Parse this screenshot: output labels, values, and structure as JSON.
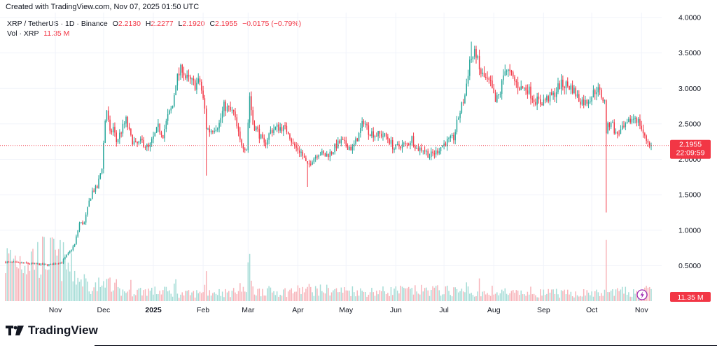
{
  "header": {
    "title": "Created with TradingView.com, Nov 07, 2025 01:50 UTC"
  },
  "legend": {
    "symbol": "XRP / TetherUS · 1D · Binance",
    "open_label": "O",
    "open": "2.2130",
    "high_label": "H",
    "high": "2.2277",
    "low_label": "L",
    "low": "2.1920",
    "close_label": "C",
    "close": "2.1955",
    "change": "−0.0175 (−0.79%)",
    "vol_label": "Vol · XRP",
    "vol_value": "11.35 M"
  },
  "price_badge": {
    "price": "2.1955",
    "countdown": "22:09:59"
  },
  "vol_badge": {
    "value": "11.35 M"
  },
  "logo": {
    "text": "TradingView",
    "icon": "tradingview-logo-icon"
  },
  "colors": {
    "up": "#26a69a",
    "down": "#f23645",
    "vol_up": "#a5dcd6",
    "vol_down": "#f7b3b9",
    "grid": "#f0f3fa",
    "text": "#131722"
  },
  "chart_data": {
    "type": "candlestick",
    "title": "XRP / TetherUS · 1D · Binance",
    "y_ticks": [
      "4.0000",
      "3.5000",
      "3.0000",
      "2.5000",
      "2.0000",
      "1.5000",
      "1.0000",
      "0.5000"
    ],
    "y_tick_values": [
      4.0,
      3.5,
      3.0,
      2.5,
      2.0,
      1.5,
      1.0,
      0.5
    ],
    "ylim": [
      0.0,
      4.03
    ],
    "x_ticks": [
      "Nov",
      "Dec",
      "2025",
      "Feb",
      "Mar",
      "Apr",
      "May",
      "Jun",
      "Jul",
      "Aug",
      "Sep",
      "Oct",
      "Nov"
    ],
    "x_tick_dates": [
      "2024-11-01",
      "2024-12-01",
      "2025-01-01",
      "2025-02-01",
      "2025-03-01",
      "2025-04-01",
      "2025-05-01",
      "2025-06-01",
      "2025-07-01",
      "2025-08-01",
      "2025-09-01",
      "2025-10-01",
      "2025-11-01"
    ],
    "bold_ticks": [
      "2025"
    ],
    "x_range": [
      "2024-10-01",
      "2025-11-07"
    ],
    "last_price": 2.1955,
    "close_series": [
      [
        "2024-10-01",
        0.55
      ],
      [
        "2024-10-15",
        0.53
      ],
      [
        "2024-10-28",
        0.51
      ],
      [
        "2024-11-05",
        0.55
      ],
      [
        "2024-11-10",
        0.7
      ],
      [
        "2024-11-13",
        0.8
      ],
      [
        "2024-11-16",
        1.1
      ],
      [
        "2024-11-19",
        1.1
      ],
      [
        "2024-11-22",
        1.4
      ],
      [
        "2024-11-24",
        1.55
      ],
      [
        "2024-11-27",
        1.6
      ],
      [
        "2024-11-30",
        1.9
      ],
      [
        "2024-12-02",
        2.55
      ],
      [
        "2024-12-03",
        2.7
      ],
      [
        "2024-12-05",
        2.35
      ],
      [
        "2024-12-07",
        2.45
      ],
      [
        "2024-12-09",
        2.25
      ],
      [
        "2024-12-12",
        2.4
      ],
      [
        "2024-12-15",
        2.55
      ],
      [
        "2024-12-18",
        2.3
      ],
      [
        "2024-12-21",
        2.2
      ],
      [
        "2024-12-25",
        2.25
      ],
      [
        "2024-12-29",
        2.15
      ],
      [
        "2025-01-01",
        2.3
      ],
      [
        "2025-01-04",
        2.45
      ],
      [
        "2025-01-07",
        2.35
      ],
      [
        "2025-01-10",
        2.6
      ],
      [
        "2025-01-13",
        2.75
      ],
      [
        "2025-01-15",
        3.1
      ],
      [
        "2025-01-17",
        3.2
      ],
      [
        "2025-01-19",
        3.3
      ],
      [
        "2025-01-21",
        3.15
      ],
      [
        "2025-01-24",
        3.1
      ],
      [
        "2025-01-27",
        3.05
      ],
      [
        "2025-01-30",
        3.1
      ],
      [
        "2025-02-02",
        2.7
      ],
      [
        "2025-02-03",
        2.45
      ],
      [
        "2025-02-05",
        2.4
      ],
      [
        "2025-02-08",
        2.45
      ],
      [
        "2025-02-11",
        2.5
      ],
      [
        "2025-02-14",
        2.75
      ],
      [
        "2025-02-17",
        2.7
      ],
      [
        "2025-02-20",
        2.65
      ],
      [
        "2025-02-24",
        2.25
      ],
      [
        "2025-02-28",
        2.15
      ],
      [
        "2025-03-02",
        2.9
      ],
      [
        "2025-03-04",
        2.5
      ],
      [
        "2025-03-07",
        2.4
      ],
      [
        "2025-03-11",
        2.2
      ],
      [
        "2025-03-15",
        2.4
      ],
      [
        "2025-03-19",
        2.45
      ],
      [
        "2025-03-22",
        2.45
      ],
      [
        "2025-03-26",
        2.4
      ],
      [
        "2025-03-29",
        2.2
      ],
      [
        "2025-04-03",
        2.1
      ],
      [
        "2025-04-07",
        1.9
      ],
      [
        "2025-04-10",
        2.0
      ],
      [
        "2025-04-14",
        2.1
      ],
      [
        "2025-04-18",
        2.05
      ],
      [
        "2025-04-22",
        2.1
      ],
      [
        "2025-04-25",
        2.2
      ],
      [
        "2025-04-28",
        2.25
      ],
      [
        "2025-05-01",
        2.2
      ],
      [
        "2025-05-05",
        2.15
      ],
      [
        "2025-05-09",
        2.35
      ],
      [
        "2025-05-12",
        2.55
      ],
      [
        "2025-05-15",
        2.4
      ],
      [
        "2025-05-19",
        2.35
      ],
      [
        "2025-05-23",
        2.35
      ],
      [
        "2025-05-27",
        2.3
      ],
      [
        "2025-05-31",
        2.15
      ],
      [
        "2025-06-04",
        2.2
      ],
      [
        "2025-06-08",
        2.2
      ],
      [
        "2025-06-11",
        2.3
      ],
      [
        "2025-06-14",
        2.15
      ],
      [
        "2025-06-18",
        2.15
      ],
      [
        "2025-06-22",
        2.05
      ],
      [
        "2025-06-26",
        2.1
      ],
      [
        "2025-06-30",
        2.2
      ],
      [
        "2025-07-03",
        2.25
      ],
      [
        "2025-07-07",
        2.3
      ],
      [
        "2025-07-10",
        2.6
      ],
      [
        "2025-07-12",
        2.75
      ],
      [
        "2025-07-14",
        2.9
      ],
      [
        "2025-07-17",
        3.4
      ],
      [
        "2025-07-19",
        3.45
      ],
      [
        "2025-07-21",
        3.5
      ],
      [
        "2025-07-23",
        3.25
      ],
      [
        "2025-07-26",
        3.15
      ],
      [
        "2025-07-30",
        3.05
      ],
      [
        "2025-08-02",
        2.8
      ],
      [
        "2025-08-05",
        2.95
      ],
      [
        "2025-08-08",
        3.3
      ],
      [
        "2025-08-11",
        3.2
      ],
      [
        "2025-08-14",
        3.1
      ],
      [
        "2025-08-18",
        3.0
      ],
      [
        "2025-08-22",
        3.0
      ],
      [
        "2025-08-26",
        2.85
      ],
      [
        "2025-08-30",
        2.8
      ],
      [
        "2025-09-03",
        2.85
      ],
      [
        "2025-09-07",
        2.9
      ],
      [
        "2025-09-11",
        3.05
      ],
      [
        "2025-09-15",
        3.05
      ],
      [
        "2025-09-19",
        3.0
      ],
      [
        "2025-09-23",
        2.85
      ],
      [
        "2025-09-27",
        2.8
      ],
      [
        "2025-10-01",
        2.9
      ],
      [
        "2025-10-04",
        3.0
      ],
      [
        "2025-10-07",
        2.9
      ],
      [
        "2025-10-09",
        2.8
      ],
      [
        "2025-10-10",
        2.4
      ],
      [
        "2025-10-13",
        2.55
      ],
      [
        "2025-10-16",
        2.35
      ],
      [
        "2025-10-19",
        2.4
      ],
      [
        "2025-10-22",
        2.45
      ],
      [
        "2025-10-25",
        2.55
      ],
      [
        "2025-10-28",
        2.6
      ],
      [
        "2025-10-31",
        2.5
      ],
      [
        "2025-11-03",
        2.3
      ],
      [
        "2025-11-05",
        2.25
      ],
      [
        "2025-11-07",
        2.1955
      ]
    ],
    "wick_spikes": [
      {
        "date": "2025-02-03",
        "low": 1.77
      },
      {
        "date": "2025-04-07",
        "low": 1.61
      },
      {
        "date": "2025-10-10",
        "low": 1.25
      },
      {
        "date": "2025-07-18",
        "high": 3.66
      }
    ]
  }
}
